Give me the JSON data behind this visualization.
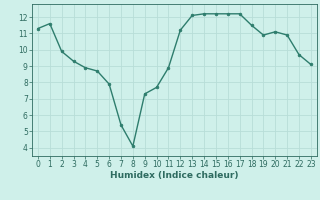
{
  "x": [
    0,
    1,
    2,
    3,
    4,
    5,
    6,
    7,
    8,
    9,
    10,
    11,
    12,
    13,
    14,
    15,
    16,
    17,
    18,
    19,
    20,
    21,
    22,
    23
  ],
  "y": [
    11.3,
    11.6,
    9.9,
    9.3,
    8.9,
    8.7,
    7.9,
    5.4,
    4.1,
    7.3,
    7.7,
    8.9,
    11.2,
    12.1,
    12.2,
    12.2,
    12.2,
    12.2,
    11.5,
    10.9,
    11.1,
    10.9,
    9.7,
    9.1
  ],
  "line_color": "#2e7d6d",
  "marker": "o",
  "marker_size": 2.0,
  "linewidth": 1.0,
  "bg_color": "#cff0ea",
  "grid_color": "#b8ddd8",
  "xlabel": "Humidex (Indice chaleur)",
  "xlim": [
    -0.5,
    23.5
  ],
  "ylim": [
    3.5,
    12.8
  ],
  "yticks": [
    4,
    5,
    6,
    7,
    8,
    9,
    10,
    11,
    12
  ],
  "xticks": [
    0,
    1,
    2,
    3,
    4,
    5,
    6,
    7,
    8,
    9,
    10,
    11,
    12,
    13,
    14,
    15,
    16,
    17,
    18,
    19,
    20,
    21,
    22,
    23
  ],
  "tick_fontsize": 5.5,
  "label_fontsize": 6.5,
  "tick_color": "#2e6b60"
}
